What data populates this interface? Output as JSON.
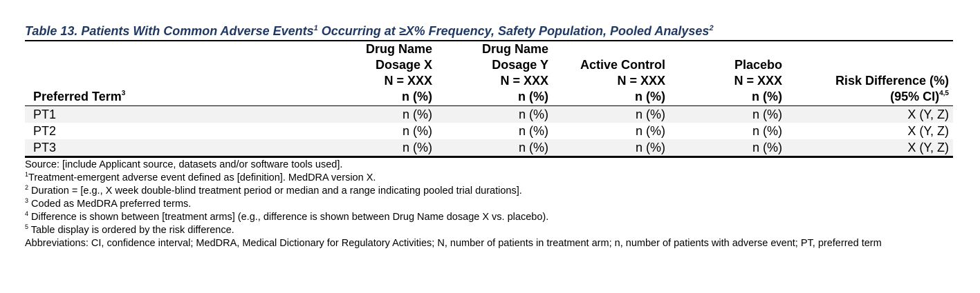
{
  "title": {
    "part1": "Table 13. Patients With Common Adverse Events",
    "sup1": "1",
    "part2": " Occurring at ≥X% Frequency, Safety Population, Pooled Analyses",
    "sup2": "2"
  },
  "header": {
    "preferred_term": "Preferred Term",
    "preferred_term_sup": "3",
    "columns": [
      {
        "l1": "Drug Name",
        "l2": "Dosage X",
        "l3": "N = XXX",
        "l4": "n (%)"
      },
      {
        "l1": "Drug Name",
        "l2": "Dosage Y",
        "l3": "N = XXX",
        "l4": "n (%)"
      },
      {
        "l1": "",
        "l2": "Active Control",
        "l3": "N = XXX",
        "l4": "n (%)"
      },
      {
        "l1": "",
        "l2": "Placebo",
        "l3": "N = XXX",
        "l4": "n (%)"
      }
    ],
    "risk_l1": "Risk Difference (%)",
    "risk_l2": "(95% CI)",
    "risk_sup": "4,5"
  },
  "rows": [
    {
      "pt": "PT1",
      "c1": "n (%)",
      "c2": "n (%)",
      "c3": "n (%)",
      "c4": "n (%)",
      "rd": "X (Y, Z)"
    },
    {
      "pt": "PT2",
      "c1": "n (%)",
      "c2": "n (%)",
      "c3": "n (%)",
      "c4": "n (%)",
      "rd": "X (Y, Z)"
    },
    {
      "pt": "PT3",
      "c1": "n (%)",
      "c2": "n (%)",
      "c3": "n (%)",
      "c4": "n (%)",
      "rd": "X (Y, Z)"
    }
  ],
  "notes": {
    "source": "Source: [include Applicant source, datasets and/or software tools used].",
    "fn1_sup": "1",
    "fn1": "Treatment-emergent adverse event defined as [definition]. MedDRA version X.",
    "fn2_sup": "2",
    "fn2": " Duration = [e.g., X week double-blind treatment period or median and a range indicating pooled trial durations].",
    "fn3_sup": "3",
    "fn3": " Coded as MedDRA preferred terms.",
    "fn4_sup": "4",
    "fn4": " Difference is shown between [treatment arms] (e.g., difference is shown between Drug Name dosage X vs. placebo).",
    "fn5_sup": "5",
    "fn5": " Table display is ordered by the risk difference.",
    "abbrev": "Abbreviations: CI, confidence interval; MedDRA, Medical Dictionary for Regulatory Activities; N, number of patients in treatment arm; n, number of patients with adverse event; PT, preferred term"
  },
  "colors": {
    "title": "#1f3864",
    "row_shade": "#f2f2f2"
  }
}
